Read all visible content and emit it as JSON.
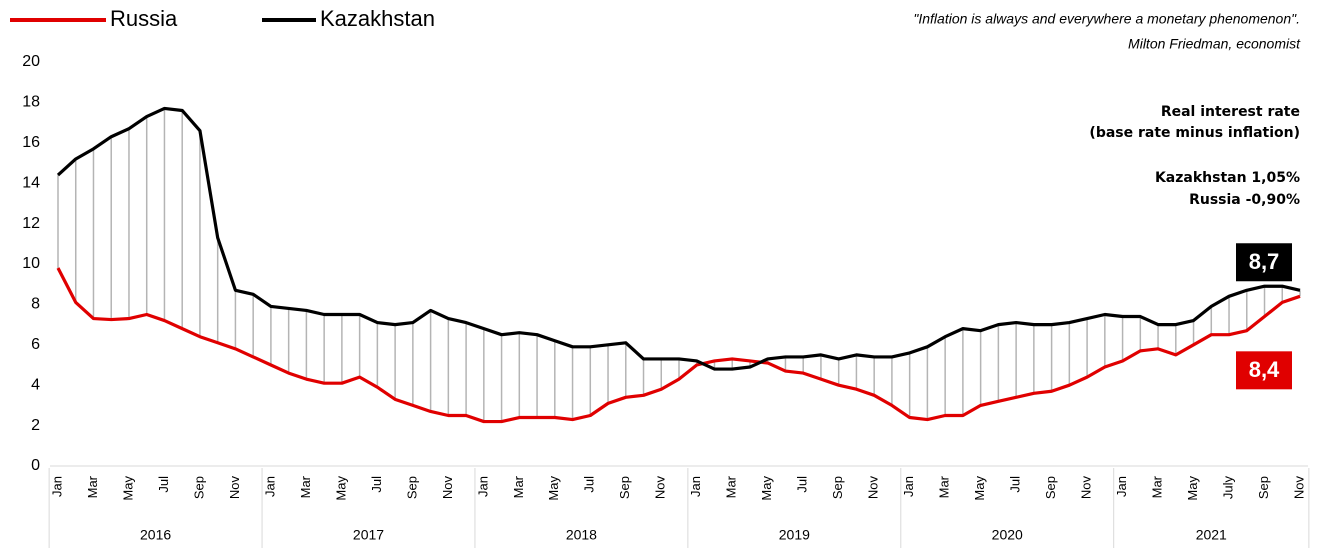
{
  "chart_data": {
    "type": "line",
    "annotations": {
      "quote": "\"Inflation is always and everywhere a monetary phenomenon\".",
      "quote_author": "Milton Friedman, economist",
      "box_title_1": "Real interest rate",
      "box_title_2": "(base rate minus inflation)",
      "box_line_1": "Kazakhstan 1,05%",
      "box_line_2": "Russia -0,90%"
    },
    "categories": [
      "Jan",
      null,
      "Mar",
      null,
      "May",
      null,
      "Jul",
      null,
      "Sep",
      null,
      "Nov",
      null,
      "Jan",
      null,
      "Mar",
      null,
      "May",
      null,
      "Jul",
      null,
      "Sep",
      null,
      "Nov",
      null,
      "Jan",
      null,
      "Mar",
      null,
      "May",
      null,
      "Jul",
      null,
      "Sep",
      null,
      "Nov",
      null,
      "Jan",
      null,
      "Mar",
      null,
      "May",
      null,
      "Jul",
      null,
      "Sep",
      null,
      "Nov",
      null,
      "Jan",
      null,
      "Mar",
      null,
      "May",
      null,
      "Jul",
      null,
      "Sep",
      null,
      "Nov",
      null,
      "Jan",
      null,
      "Mar",
      null,
      "May",
      null,
      "July",
      null,
      "Sep",
      null,
      "Nov"
    ],
    "year_labels": [
      "2016",
      "2017",
      "2018",
      "2019",
      "2020",
      "2021"
    ],
    "series": [
      {
        "name": "Russia",
        "color": "#e00000",
        "end_label": "8,4",
        "values": [
          9.8,
          8.1,
          7.3,
          7.25,
          7.3,
          7.5,
          7.2,
          6.8,
          6.4,
          6.1,
          5.8,
          5.4,
          5.0,
          4.6,
          4.3,
          4.1,
          4.1,
          4.4,
          3.9,
          3.3,
          3.0,
          2.7,
          2.5,
          2.5,
          2.2,
          2.2,
          2.4,
          2.4,
          2.4,
          2.3,
          2.5,
          3.1,
          3.4,
          3.5,
          3.8,
          4.3,
          5.0,
          5.2,
          5.3,
          5.2,
          5.1,
          4.7,
          4.6,
          4.3,
          4.0,
          3.8,
          3.5,
          3.0,
          2.4,
          2.3,
          2.5,
          2.5,
          3.0,
          3.2,
          3.4,
          3.6,
          3.7,
          4.0,
          4.4,
          4.9,
          5.2,
          5.7,
          5.8,
          5.5,
          6.0,
          6.5,
          6.5,
          6.7,
          7.4,
          8.1,
          8.4
        ]
      },
      {
        "name": "Kazakhstan",
        "color": "#000000",
        "end_label": "8,7",
        "values": [
          14.4,
          15.2,
          15.7,
          16.3,
          16.7,
          17.3,
          17.7,
          17.6,
          16.6,
          11.3,
          8.7,
          8.5,
          7.9,
          7.8,
          7.7,
          7.5,
          7.5,
          7.5,
          7.1,
          7.0,
          7.1,
          7.7,
          7.3,
          7.1,
          6.8,
          6.5,
          6.6,
          6.5,
          6.2,
          5.9,
          5.9,
          6.0,
          6.1,
          5.3,
          5.3,
          5.3,
          5.2,
          4.8,
          4.8,
          4.9,
          5.3,
          5.4,
          5.4,
          5.5,
          5.3,
          5.5,
          5.4,
          5.4,
          5.6,
          5.9,
          6.4,
          6.8,
          6.7,
          7.0,
          7.1,
          7.0,
          7.0,
          7.1,
          7.3,
          7.5,
          7.4,
          7.4,
          7.0,
          7.0,
          7.2,
          7.9,
          8.4,
          8.7,
          8.9,
          8.9,
          8.7
        ]
      }
    ],
    "ylim": [
      0,
      20
    ],
    "yticks": [
      0,
      2,
      4,
      6,
      8,
      10,
      12,
      14,
      16,
      18,
      20
    ],
    "grid": false,
    "drop_lines": true,
    "legend": "top-left"
  }
}
